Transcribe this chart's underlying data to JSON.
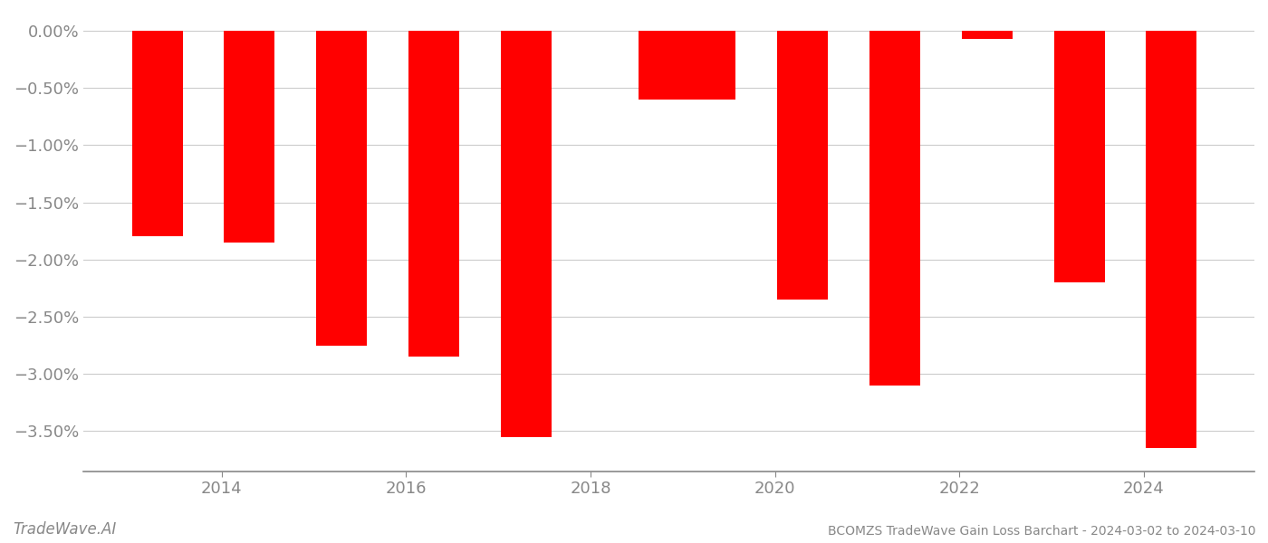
{
  "bar_positions": [
    2013.3,
    2014.3,
    2015.3,
    2016.3,
    2017.3,
    2018.8,
    2019.3,
    2020.3,
    2021.3,
    2022.3,
    2023.3,
    2024.3
  ],
  "values": [
    -1.8,
    -1.85,
    -2.75,
    -2.85,
    -3.55,
    -0.6,
    -0.6,
    -2.35,
    -3.1,
    -0.07,
    -2.2,
    -3.65
  ],
  "bar_color": "#ff0000",
  "background_color": "#ffffff",
  "ylim": [
    -3.85,
    0.15
  ],
  "yticks": [
    0.0,
    -0.5,
    -1.0,
    -1.5,
    -2.0,
    -2.5,
    -3.0,
    -3.5
  ],
  "ytick_labels": [
    "0.00%",
    "−0.50%",
    "−1.00%",
    "−1.50%",
    "−2.00%",
    "−2.50%",
    "−3.00%",
    "−3.50%"
  ],
  "xlim": [
    2012.5,
    2025.2
  ],
  "xticks": [
    2014,
    2016,
    2018,
    2020,
    2022,
    2024
  ],
  "grid_color": "#cccccc",
  "axis_color": "#888888",
  "tick_color": "#888888",
  "watermark_text": "TradeWave.AI",
  "footer_text": "BCOMZS TradeWave Gain Loss Barchart - 2024-03-02 to 2024-03-10",
  "bar_width": 0.55
}
